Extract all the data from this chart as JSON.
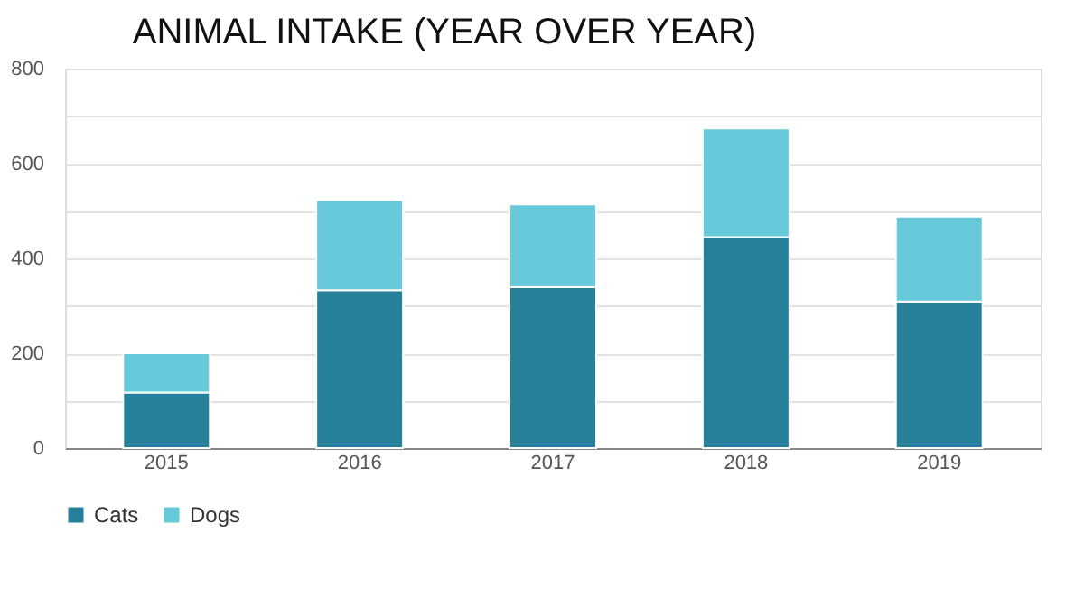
{
  "chart_data": {
    "type": "bar",
    "title": "ANIMAL INTAKE (YEAR OVER YEAR)",
    "categories": [
      "2015",
      "2016",
      "2017",
      "2018",
      "2019"
    ],
    "series": [
      {
        "name": "Cats",
        "color": "#26809a",
        "values": [
          117,
          333,
          339,
          445,
          309
        ]
      },
      {
        "name": "Dogs",
        "color": "#66cadb",
        "values": [
          83,
          190,
          175,
          229,
          179
        ]
      }
    ],
    "stacked": true,
    "ylim": [
      0,
      800
    ],
    "yticks": [
      0,
      {
        "value": 100,
        "label": null
      },
      200,
      {
        "value": 300,
        "label": null
      },
      400,
      {
        "value": 500,
        "label": null
      },
      600,
      {
        "value": 700,
        "label": null
      },
      800
    ],
    "grid": "y",
    "legend": "bottom"
  }
}
